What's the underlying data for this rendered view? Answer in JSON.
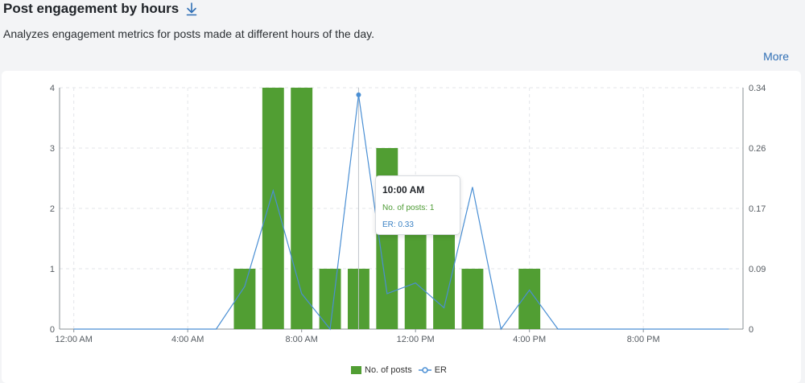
{
  "header": {
    "title": "Post engagement by hours",
    "subtitle": "Analyzes engagement metrics for posts made at different hours of the day.",
    "more_label": "More",
    "download_icon": "download-icon"
  },
  "colors": {
    "bar": "#519e33",
    "line": "#4a8fd4",
    "grid": "#e3e6ea",
    "axis": "#8a9096",
    "text": "#555b61"
  },
  "chart_data": {
    "type": "bar",
    "title": "",
    "xlabel": "",
    "ylabel": "",
    "x_tick_labels": [
      "12:00 AM",
      "4:00 AM",
      "8:00 AM",
      "12:00 PM",
      "4:00 PM",
      "8:00 PM"
    ],
    "y_left_ticks": [
      "0",
      "1",
      "2",
      "3",
      "4"
    ],
    "y_right_ticks": [
      "0",
      "0.09",
      "0.17",
      "0.26",
      "0.34"
    ],
    "ylim_left": [
      0,
      4
    ],
    "ylim_right": [
      0,
      0.34
    ],
    "hours": [
      0,
      1,
      2,
      3,
      4,
      5,
      6,
      7,
      8,
      9,
      10,
      11,
      12,
      13,
      14,
      15,
      16,
      17,
      18,
      19,
      20,
      21,
      22,
      23
    ],
    "series": [
      {
        "name": "No. of posts",
        "type": "bar",
        "values": [
          0,
          0,
          0,
          0,
          0,
          0,
          1,
          4,
          4,
          1,
          1,
          3,
          2,
          2,
          1,
          0,
          1,
          0,
          0,
          0,
          0,
          0,
          0,
          0
        ]
      },
      {
        "name": "ER",
        "type": "line",
        "axis": "right",
        "values": [
          0,
          0,
          0,
          0,
          0,
          0,
          0.06,
          0.195,
          0.05,
          0,
          0.33,
          0.05,
          0.065,
          0.03,
          0.2,
          0,
          0.055,
          0,
          0,
          0,
          0,
          0,
          0,
          0
        ]
      }
    ],
    "highlight_hour": 10,
    "grid": true,
    "legend_position": "bottom-center"
  },
  "tooltip": {
    "time": "10:00 AM",
    "posts_text": "No. of posts: 1",
    "er_text": "ER: 0.33"
  },
  "legend": {
    "posts_label": "No. of posts",
    "er_label": "ER"
  }
}
